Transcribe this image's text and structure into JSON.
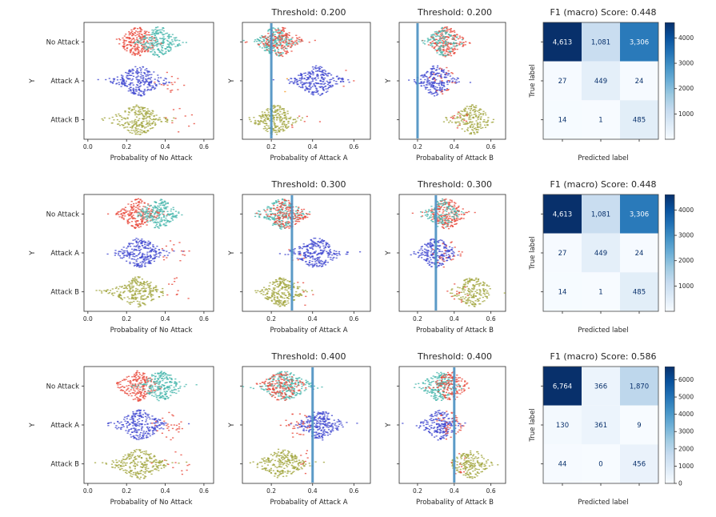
{
  "colors": {
    "red": "#e8483b",
    "teal": "#47b7ac",
    "blue": "#4149d0",
    "olive": "#a1a53d",
    "orange": "#f59a23",
    "threshold_line": "#4a90c2",
    "light_text": "#f7fbff",
    "dark_text": "#08306b",
    "axis": "#333333",
    "text": "#262626"
  },
  "chart_data": [
    {
      "type": "swarm",
      "title": "",
      "xlabel": "Probabality of No Attack",
      "ylabel": "Y",
      "categories": [
        "No Attack",
        "Attack A",
        "Attack B"
      ],
      "xlim": [
        -0.02,
        0.65
      ],
      "xticks": [
        0,
        0.2,
        0.4,
        0.6
      ],
      "threshold": null,
      "groups": [
        [
          {
            "c": "red",
            "m": 0.26,
            "s": 0.05,
            "n": 210
          },
          {
            "c": "teal",
            "m": 0.37,
            "s": 0.05,
            "n": 210
          }
        ],
        [
          {
            "c": "blue",
            "m": 0.27,
            "s": 0.06,
            "n": 260
          },
          {
            "c": "red",
            "m": 0.44,
            "s": 0.035,
            "n": 16
          }
        ],
        [
          {
            "c": "olive",
            "m": 0.26,
            "s": 0.065,
            "n": 240
          },
          {
            "c": "red",
            "m": 0.47,
            "s": 0.04,
            "n": 10
          }
        ]
      ]
    },
    {
      "type": "swarm",
      "title": "Threshold: 0.200",
      "xlabel": "Probabality of Attack A",
      "ylabel": "Y",
      "categories": [
        "No Attack",
        "Attack A",
        "Attack B"
      ],
      "xlim": [
        0.06,
        0.68
      ],
      "xticks": [
        0.2,
        0.4,
        0.6
      ],
      "threshold": 0.2,
      "groups": [
        [
          {
            "c": "teal",
            "m": 0.22,
            "s": 0.045,
            "n": 200
          },
          {
            "c": "red",
            "m": 0.245,
            "s": 0.05,
            "n": 170
          }
        ],
        [
          {
            "c": "blue",
            "m": 0.42,
            "s": 0.055,
            "n": 260
          },
          {
            "c": "orange",
            "m": 0.27,
            "s": 0.004,
            "n": 2
          },
          {
            "c": "red",
            "m": 0.58,
            "s": 0.02,
            "n": 3
          }
        ],
        [
          {
            "c": "olive",
            "m": 0.22,
            "s": 0.05,
            "n": 230
          },
          {
            "c": "red",
            "m": 0.34,
            "s": 0.03,
            "n": 6
          }
        ]
      ]
    },
    {
      "type": "swarm",
      "title": "Threshold: 0.200",
      "xlabel": "Probabality of Attack B",
      "ylabel": "Y",
      "categories": [
        "No Attack",
        "Attack A",
        "Attack B"
      ],
      "xlim": [
        0.1,
        0.68
      ],
      "xticks": [
        0.2,
        0.4,
        0.6
      ],
      "threshold": 0.2,
      "groups": [
        [
          {
            "c": "red",
            "m": 0.36,
            "s": 0.05,
            "n": 190
          },
          {
            "c": "teal",
            "m": 0.34,
            "s": 0.045,
            "n": 130
          }
        ],
        [
          {
            "c": "blue",
            "m": 0.3,
            "s": 0.05,
            "n": 220
          },
          {
            "c": "red",
            "m": 0.34,
            "s": 0.04,
            "n": 25
          }
        ],
        [
          {
            "c": "olive",
            "m": 0.5,
            "s": 0.055,
            "n": 180
          },
          {
            "c": "red",
            "m": 0.43,
            "s": 0.03,
            "n": 12
          }
        ]
      ]
    },
    {
      "type": "confusion_matrix",
      "title": "F1 (macro) Score: 0.448",
      "xlabel": "Predicted label",
      "ylabel": "True label",
      "matrix": [
        [
          4613,
          1081,
          3306
        ],
        [
          27,
          449,
          24
        ],
        [
          14,
          1,
          485
        ]
      ],
      "vmin": 1,
      "vmax": 4613,
      "colorbar_ticks": [
        1000,
        2000,
        3000,
        4000
      ]
    },
    {
      "type": "swarm",
      "title": "",
      "xlabel": "Probabality of No Attack",
      "ylabel": "Y",
      "categories": [
        "No Attack",
        "Attack A",
        "Attack B"
      ],
      "xlim": [
        -0.02,
        0.65
      ],
      "xticks": [
        0,
        0.2,
        0.4,
        0.6
      ],
      "threshold": null,
      "groups": [
        [
          {
            "c": "red",
            "m": 0.26,
            "s": 0.05,
            "n": 210
          },
          {
            "c": "teal",
            "m": 0.37,
            "s": 0.05,
            "n": 210
          }
        ],
        [
          {
            "c": "blue",
            "m": 0.27,
            "s": 0.06,
            "n": 260
          },
          {
            "c": "red",
            "m": 0.44,
            "s": 0.035,
            "n": 16
          }
        ],
        [
          {
            "c": "olive",
            "m": 0.26,
            "s": 0.065,
            "n": 240
          },
          {
            "c": "red",
            "m": 0.47,
            "s": 0.04,
            "n": 10
          }
        ]
      ]
    },
    {
      "type": "swarm",
      "title": "Threshold: 0.300",
      "xlabel": "Probabality of Attack A",
      "ylabel": "Y",
      "categories": [
        "No Attack",
        "Attack A",
        "Attack B"
      ],
      "xlim": [
        0.06,
        0.68
      ],
      "xticks": [
        0.2,
        0.4,
        0.6
      ],
      "threshold": 0.3,
      "groups": [
        [
          {
            "c": "teal",
            "m": 0.25,
            "s": 0.05,
            "n": 200
          },
          {
            "c": "red",
            "m": 0.27,
            "s": 0.05,
            "n": 170
          }
        ],
        [
          {
            "c": "blue",
            "m": 0.42,
            "s": 0.055,
            "n": 260
          },
          {
            "c": "red",
            "m": 0.33,
            "s": 0.02,
            "n": 6
          }
        ],
        [
          {
            "c": "olive",
            "m": 0.25,
            "s": 0.05,
            "n": 230
          },
          {
            "c": "red",
            "m": 0.36,
            "s": 0.03,
            "n": 6
          }
        ]
      ]
    },
    {
      "type": "swarm",
      "title": "Threshold: 0.300",
      "xlabel": "Probabality of Attack B",
      "ylabel": "Y",
      "categories": [
        "No Attack",
        "Attack A",
        "Attack B"
      ],
      "xlim": [
        0.1,
        0.68
      ],
      "xticks": [
        0.2,
        0.4,
        0.6
      ],
      "threshold": 0.3,
      "groups": [
        [
          {
            "c": "red",
            "m": 0.36,
            "s": 0.05,
            "n": 190
          },
          {
            "c": "teal",
            "m": 0.33,
            "s": 0.045,
            "n": 130
          }
        ],
        [
          {
            "c": "blue",
            "m": 0.3,
            "s": 0.05,
            "n": 220
          },
          {
            "c": "red",
            "m": 0.35,
            "s": 0.04,
            "n": 25
          }
        ],
        [
          {
            "c": "olive",
            "m": 0.5,
            "s": 0.055,
            "n": 180
          },
          {
            "c": "red",
            "m": 0.43,
            "s": 0.03,
            "n": 12
          }
        ]
      ]
    },
    {
      "type": "confusion_matrix",
      "title": "F1 (macro) Score: 0.448",
      "xlabel": "Predicted label",
      "ylabel": "True label",
      "matrix": [
        [
          4613,
          1081,
          3306
        ],
        [
          27,
          449,
          24
        ],
        [
          14,
          1,
          485
        ]
      ],
      "vmin": 1,
      "vmax": 4613,
      "colorbar_ticks": [
        1000,
        2000,
        3000,
        4000
      ]
    },
    {
      "type": "swarm",
      "title": "",
      "xlabel": "Probabality of No Attack",
      "ylabel": "Y",
      "categories": [
        "No Attack",
        "Attack A",
        "Attack B"
      ],
      "xlim": [
        -0.02,
        0.65
      ],
      "xticks": [
        0,
        0.2,
        0.4,
        0.6
      ],
      "threshold": null,
      "groups": [
        [
          {
            "c": "red",
            "m": 0.26,
            "s": 0.05,
            "n": 200
          },
          {
            "c": "teal",
            "m": 0.38,
            "s": 0.055,
            "n": 220
          }
        ],
        [
          {
            "c": "blue",
            "m": 0.27,
            "s": 0.06,
            "n": 250
          },
          {
            "c": "red",
            "m": 0.42,
            "s": 0.04,
            "n": 30
          }
        ],
        [
          {
            "c": "olive",
            "m": 0.27,
            "s": 0.065,
            "n": 240
          },
          {
            "c": "red",
            "m": 0.46,
            "s": 0.04,
            "n": 12
          }
        ]
      ]
    },
    {
      "type": "swarm",
      "title": "Threshold: 0.400",
      "xlabel": "Probabality of Attack A",
      "ylabel": "Y",
      "categories": [
        "No Attack",
        "Attack A",
        "Attack B"
      ],
      "xlim": [
        0.06,
        0.68
      ],
      "xticks": [
        0.2,
        0.4,
        0.6
      ],
      "threshold": 0.4,
      "groups": [
        [
          {
            "c": "teal",
            "m": 0.27,
            "s": 0.06,
            "n": 230
          },
          {
            "c": "red",
            "m": 0.25,
            "s": 0.05,
            "n": 150
          }
        ],
        [
          {
            "c": "blue",
            "m": 0.44,
            "s": 0.05,
            "n": 250
          },
          {
            "c": "red",
            "m": 0.33,
            "s": 0.035,
            "n": 30
          }
        ],
        [
          {
            "c": "olive",
            "m": 0.25,
            "s": 0.055,
            "n": 230
          },
          {
            "c": "red",
            "m": 0.37,
            "s": 0.03,
            "n": 8
          }
        ]
      ]
    },
    {
      "type": "swarm",
      "title": "Threshold: 0.400",
      "xlabel": "Probabality of Attack B",
      "ylabel": "Y",
      "categories": [
        "No Attack",
        "Attack A",
        "Attack B"
      ],
      "xlim": [
        0.1,
        0.68
      ],
      "xticks": [
        0.2,
        0.4,
        0.6
      ],
      "threshold": 0.4,
      "groups": [
        [
          {
            "c": "teal",
            "m": 0.32,
            "s": 0.05,
            "n": 200
          },
          {
            "c": "red",
            "m": 0.38,
            "s": 0.045,
            "n": 140
          }
        ],
        [
          {
            "c": "blue",
            "m": 0.32,
            "s": 0.05,
            "n": 200
          },
          {
            "c": "red",
            "m": 0.37,
            "s": 0.04,
            "n": 45
          }
        ],
        [
          {
            "c": "olive",
            "m": 0.49,
            "s": 0.05,
            "n": 180
          },
          {
            "c": "red",
            "m": 0.43,
            "s": 0.025,
            "n": 10
          }
        ]
      ]
    },
    {
      "type": "confusion_matrix",
      "title": "F1 (macro) Score: 0.586",
      "xlabel": "Predicted label",
      "ylabel": "True label",
      "matrix": [
        [
          6764,
          366,
          1870
        ],
        [
          130,
          361,
          9
        ],
        [
          44,
          0,
          456
        ]
      ],
      "vmin": 0,
      "vmax": 6764,
      "colorbar_ticks": [
        0,
        1000,
        2000,
        3000,
        4000,
        5000,
        6000
      ]
    }
  ]
}
